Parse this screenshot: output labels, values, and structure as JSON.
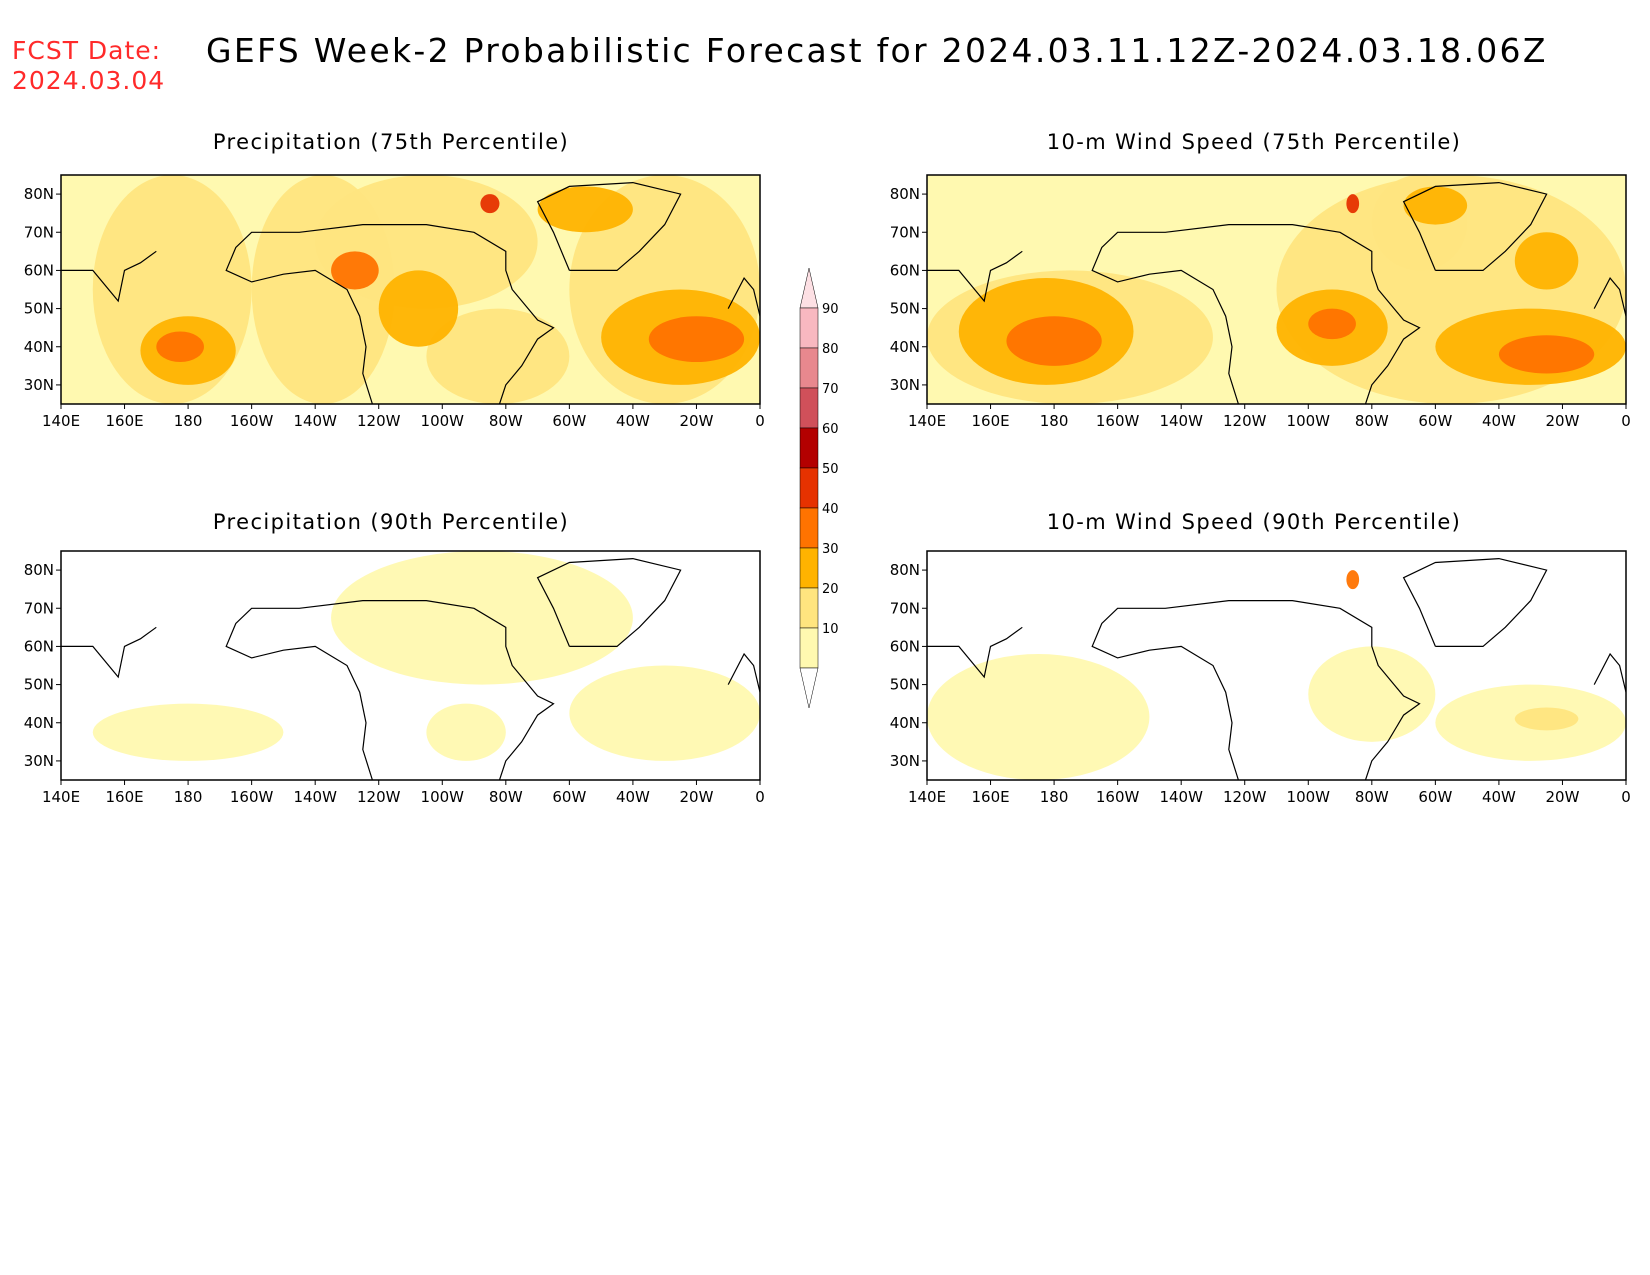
{
  "header": {
    "fcst_label_line1": "FCST Date:",
    "fcst_label_line2": "2024.03.04",
    "title": "GEFS Week-2 Probabilistic Forecast for 2024.03.11.12Z-2024.03.18.06Z"
  },
  "axes": {
    "lon_labels": [
      "140E",
      "160E",
      "180",
      "160W",
      "140W",
      "120W",
      "100W",
      "80W",
      "60W",
      "40W",
      "20W",
      "0"
    ],
    "lat_labels": [
      "80N",
      "70N",
      "60N",
      "50N",
      "40N",
      "30N"
    ]
  },
  "colorbar": {
    "levels": [
      "10",
      "20",
      "30",
      "40",
      "50",
      "60",
      "70",
      "80",
      "90"
    ],
    "colors": [
      "#fff9b0",
      "#ffe57f",
      "#ffb300",
      "#ff7300",
      "#e63200",
      "#b30000",
      "#d0505a",
      "#e8888e",
      "#f8b8c0",
      "#fde0e4"
    ]
  },
  "panels": [
    {
      "id": "precip-75",
      "title": "Precipitation (75th Percentile)",
      "intensity": "high"
    },
    {
      "id": "wind-75",
      "title": "10-m Wind Speed (75th Percentile)",
      "intensity": "high"
    },
    {
      "id": "precip-90",
      "title": "Precipitation (90th Percentile)",
      "intensity": "low"
    },
    {
      "id": "wind-90",
      "title": "10-m Wind Speed (90th Percentile)",
      "intensity": "low"
    }
  ]
}
